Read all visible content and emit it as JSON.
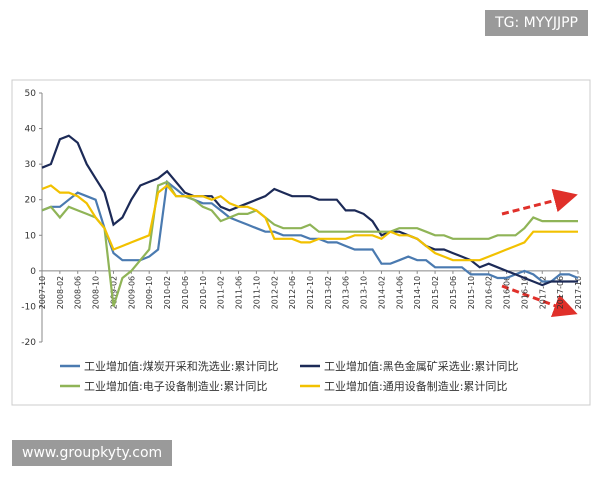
{
  "chart_data": {
    "type": "line",
    "categories": [
      "2007-10",
      null,
      "2008-02",
      null,
      "2008-06",
      null,
      "2008-10",
      null,
      "2009-02",
      null,
      "2009-06",
      null,
      "2009-10",
      null,
      "2010-02",
      null,
      "2010-06",
      null,
      "2010-10",
      null,
      "2011-02",
      null,
      "2011-06",
      null,
      "2011-10",
      null,
      "2012-02",
      null,
      "2012-06",
      null,
      "2012-10",
      null,
      "2013-02",
      null,
      "2013-06",
      null,
      "2013-10",
      null,
      "2014-02",
      null,
      "2014-06",
      null,
      "2014-10",
      null,
      "2015-02",
      null,
      "2015-06",
      null,
      "2015-10",
      null,
      "2016-02",
      null,
      "2016-06",
      null,
      "2016-10",
      null,
      "2017-02",
      null,
      "2017-06",
      null,
      "2017-10"
    ],
    "series": [
      {
        "name": "工业增加值:煤炭开采和洗选业:累计同比",
        "color": "#4a7ab0",
        "values": [
          17,
          18,
          18,
          20,
          22,
          21,
          20,
          12,
          5,
          3,
          3,
          3,
          4,
          6,
          25,
          23,
          21,
          20,
          19,
          19,
          17,
          15,
          14,
          13,
          12,
          11,
          11,
          10,
          10,
          10,
          9,
          9,
          8,
          8,
          7,
          6,
          6,
          6,
          2,
          2,
          3,
          4,
          3,
          3,
          1,
          1,
          1,
          1,
          -1,
          -1,
          -1,
          -2,
          -2,
          -1,
          0,
          -1,
          -3,
          -3,
          -1,
          -1,
          -2
        ]
      },
      {
        "name": "工业增加值:黑色金属矿采选业:累计同比",
        "color": "#1c2a57",
        "values": [
          29,
          30,
          37,
          38,
          36,
          30,
          26,
          22,
          13,
          15,
          20,
          24,
          25,
          26,
          28,
          25,
          22,
          21,
          21,
          21,
          18,
          17,
          18,
          19,
          20,
          21,
          23,
          22,
          21,
          21,
          21,
          20,
          20,
          20,
          17,
          17,
          16,
          14,
          10,
          11,
          11,
          10,
          9,
          7,
          6,
          6,
          5,
          4,
          3,
          1,
          2,
          1,
          0,
          -1,
          -2,
          -3,
          -4,
          -3,
          -3,
          -3,
          -3
        ]
      },
      {
        "name": "工业增加值:电子设备制造业:累计同比",
        "color": "#8fb457",
        "values": [
          17,
          18,
          15,
          18,
          17,
          16,
          15,
          12,
          -10,
          -2,
          0,
          3,
          6,
          24,
          25,
          21,
          21,
          20,
          18,
          17,
          14,
          15,
          16,
          16,
          17,
          15,
          13,
          12,
          12,
          12,
          13,
          11,
          11,
          11,
          11,
          11,
          11,
          11,
          11,
          11,
          12,
          12,
          12,
          11,
          10,
          10,
          9,
          9,
          9,
          9,
          9,
          10,
          10,
          10,
          12,
          15,
          14,
          14,
          14,
          14,
          14
        ]
      },
      {
        "name": "工业增加值:通用设备制造业:累计同比",
        "color": "#f2c100",
        "values": [
          23,
          24,
          22,
          22,
          21,
          19,
          15,
          12,
          6,
          7,
          8,
          9,
          10,
          22,
          24,
          21,
          21,
          21,
          21,
          20,
          21,
          19,
          18,
          18,
          17,
          15,
          9,
          9,
          9,
          8,
          8,
          9,
          9,
          9,
          9,
          10,
          10,
          10,
          9,
          11,
          10,
          10,
          9,
          7,
          5,
          4,
          3,
          3,
          3,
          3,
          4,
          5,
          6,
          7,
          8,
          11,
          11,
          11,
          11,
          11,
          11
        ]
      }
    ],
    "ylim": [
      -20,
      50
    ],
    "yticks": [
      -20,
      -10,
      0,
      10,
      20,
      30,
      40,
      50
    ],
    "grid": false
  },
  "watermarks": [
    "TG: MYYJJPP",
    "www.groupkyty.com"
  ]
}
